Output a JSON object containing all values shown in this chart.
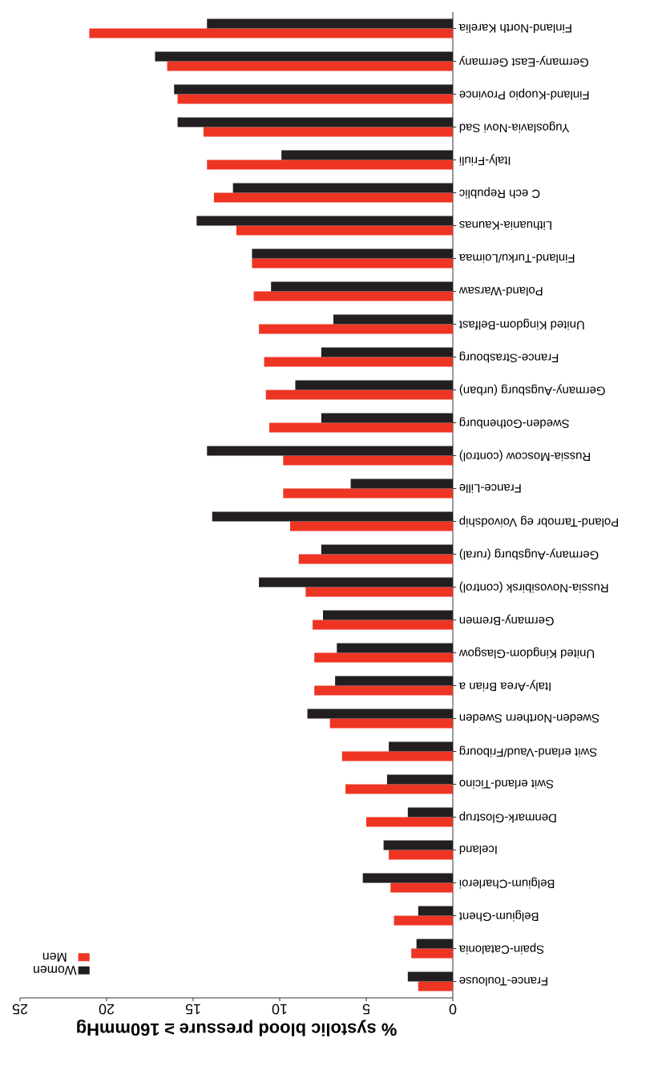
{
  "chart_data": {
    "type": "bar",
    "orientation": "horizontal",
    "xlabel": "% systolic blood pressure ≥ 160mmHg",
    "categories": [
      "Finland-North Karelia",
      "Germany-East Germany",
      "Finland-Kuopio Province",
      "Yugoslavia-Novi Sad",
      "Italy-Friuli",
      "C ech Republic",
      "Lithuania-Kaunas",
      "Finland-Turku/Loimaa",
      "Poland-Warsaw",
      "United Kingdom-Belfast",
      "France-Strasbourg",
      "Germany-Augsburg (urban)",
      "Sweden-Gothenburg",
      "Russia-Moscow (control)",
      "France-Lille",
      "Poland-Tarnobr eg Voivodship",
      "Germany-Augsburg (rural)",
      "Russia-Novosibirsk (control)",
      "Germany-Bremen",
      "United Kingdom-Glasgow",
      "Italy-Area Brian a",
      "Sweden-Northern Sweden",
      "Swit erland-Vaud/Fribourg",
      "Swit erland-Ticino",
      "Denmark-Glostrup",
      "Iceland",
      "Belgium-Charleroi",
      "Belgium-Ghent",
      "Spain-Catalonia",
      "France-Toulouse"
    ],
    "series": [
      {
        "name": "Men",
        "color": "#ee3524",
        "values": [
          21.0,
          16.5,
          15.9,
          14.4,
          14.2,
          13.8,
          12.5,
          11.6,
          11.5,
          11.2,
          10.9,
          10.8,
          10.6,
          9.8,
          9.8,
          9.4,
          8.9,
          8.5,
          8.1,
          8.0,
          8.0,
          7.1,
          6.4,
          6.2,
          5.0,
          3.7,
          3.6,
          3.4,
          2.4,
          2.0
        ]
      },
      {
        "name": "Women",
        "color": "#231f20",
        "values": [
          14.2,
          17.2,
          16.1,
          15.9,
          9.9,
          12.7,
          14.8,
          11.6,
          10.5,
          6.9,
          7.6,
          9.1,
          7.6,
          14.2,
          5.9,
          13.9,
          7.6,
          11.2,
          7.5,
          6.7,
          6.8,
          8.4,
          3.7,
          3.8,
          2.6,
          4.0,
          5.2,
          2.0,
          2.1,
          2.6
        ]
      }
    ],
    "xlim": [
      25,
      0
    ],
    "xticks": [
      0,
      5,
      10,
      15,
      20,
      25
    ],
    "grid": false,
    "legend": "bottom left"
  }
}
